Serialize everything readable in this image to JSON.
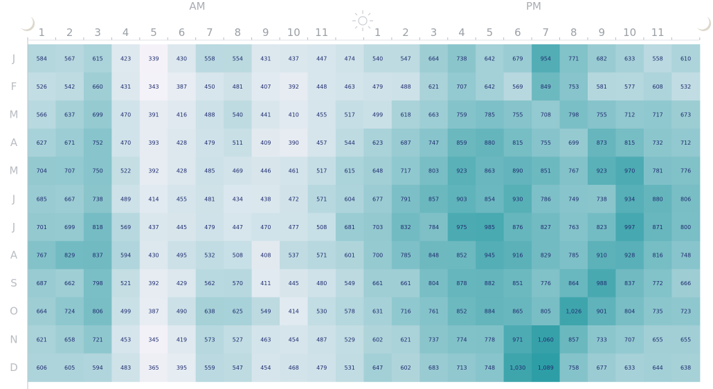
{
  "chart_data": {
    "type": "heatmap",
    "period_labels": [
      "AM",
      "PM"
    ],
    "hours_am": [
      "1",
      "2",
      "3",
      "4",
      "5",
      "6",
      "7",
      "8",
      "9",
      "10",
      "11"
    ],
    "hours_pm": [
      "1",
      "2",
      "3",
      "4",
      "5",
      "6",
      "7",
      "8",
      "9",
      "10",
      "11"
    ],
    "months": [
      "J",
      "F",
      "M",
      "A",
      "M",
      "J",
      "J",
      "A",
      "S",
      "O",
      "N",
      "D"
    ],
    "values": [
      [
        584,
        567,
        615,
        423,
        339,
        430,
        558,
        554,
        431,
        437,
        447,
        474,
        540,
        547,
        664,
        738,
        642,
        679,
        954,
        771,
        682,
        633,
        558,
        610
      ],
      [
        526,
        542,
        660,
        431,
        343,
        387,
        450,
        481,
        407,
        392,
        448,
        463,
        479,
        488,
        621,
        707,
        642,
        569,
        849,
        753,
        581,
        577,
        608,
        532
      ],
      [
        566,
        637,
        699,
        470,
        391,
        416,
        488,
        540,
        441,
        410,
        455,
        517,
        499,
        618,
        663,
        759,
        785,
        755,
        708,
        798,
        755,
        712,
        717,
        673
      ],
      [
        627,
        671,
        752,
        470,
        393,
        428,
        479,
        511,
        409,
        390,
        457,
        544,
        623,
        687,
        747,
        859,
        880,
        815,
        755,
        699,
        873,
        815,
        732,
        712
      ],
      [
        704,
        707,
        750,
        522,
        392,
        428,
        485,
        469,
        446,
        461,
        517,
        615,
        648,
        717,
        803,
        923,
        863,
        890,
        851,
        767,
        923,
        970,
        781,
        776
      ],
      [
        685,
        667,
        738,
        489,
        414,
        455,
        481,
        434,
        438,
        472,
        571,
        604,
        677,
        791,
        857,
        903,
        854,
        930,
        786,
        749,
        738,
        934,
        880,
        806
      ],
      [
        701,
        699,
        818,
        569,
        437,
        445,
        479,
        447,
        470,
        477,
        508,
        681,
        703,
        832,
        784,
        975,
        985,
        876,
        827,
        763,
        823,
        997,
        871,
        800
      ],
      [
        767,
        829,
        837,
        594,
        430,
        495,
        532,
        508,
        408,
        537,
        571,
        601,
        700,
        785,
        848,
        852,
        945,
        916,
        829,
        785,
        910,
        928,
        816,
        748
      ],
      [
        687,
        662,
        798,
        521,
        392,
        429,
        562,
        570,
        411,
        445,
        480,
        549,
        661,
        661,
        804,
        878,
        882,
        851,
        776,
        864,
        988,
        837,
        772,
        666
      ],
      [
        664,
        724,
        806,
        499,
        387,
        490,
        638,
        625,
        549,
        414,
        530,
        578,
        631,
        716,
        761,
        852,
        884,
        865,
        805,
        1026,
        901,
        804,
        735,
        723
      ],
      [
        621,
        658,
        721,
        453,
        345,
        419,
        573,
        527,
        463,
        454,
        487,
        529,
        602,
        621,
        737,
        774,
        778,
        971,
        1060,
        857,
        733,
        707,
        655,
        655
      ],
      [
        606,
        605,
        594,
        483,
        365,
        395,
        559,
        547,
        454,
        468,
        479,
        531,
        647,
        602,
        683,
        713,
        748,
        1030,
        1089,
        758,
        677,
        633,
        644,
        638
      ]
    ],
    "color_scale": {
      "low": "#f4f2f8",
      "high": "#2e9ea6",
      "domain": [
        339,
        1089
      ]
    }
  }
}
